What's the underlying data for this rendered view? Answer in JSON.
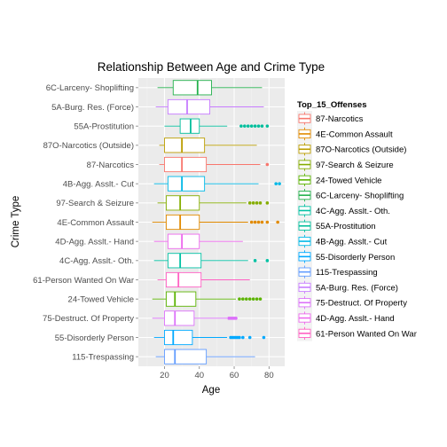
{
  "chart_data": {
    "type": "boxplot",
    "title": "Relationship Between Age and Crime Type",
    "xlabel": "Age",
    "ylabel": "Crime Type",
    "xlim": [
      5,
      89
    ],
    "x_ticks": [
      20,
      40,
      60,
      80
    ],
    "grid": true,
    "legend_title": "Top_15_Offenses",
    "legend_position": "right",
    "categories": [
      "6C-Larceny- Shoplifting",
      "5A-Burg. Res. (Force)",
      "55A-Prostitution",
      "87O-Narcotics (Outside)",
      "87-Narcotics",
      "4B-Agg. Asslt.- Cut",
      "97-Search & Seizure",
      "4E-Common Assault",
      "4D-Agg. Asslt.- Hand",
      "4C-Agg. Asslt.- Oth.",
      "61-Person Wanted On War",
      "24-Towed Vehicle",
      "75-Destruct. Of Property",
      "55-Disorderly Person",
      "115-Trespassing"
    ],
    "boxes": [
      {
        "name": "6C-Larceny- Shoplifting",
        "color": "#23B14C",
        "whisker_low": 16,
        "q1": 25,
        "median": 39,
        "q3": 47,
        "whisker_high": 76,
        "outliers": []
      },
      {
        "name": "5A-Burg. Res. (Force)",
        "color": "#C77CFF",
        "whisker_low": 15,
        "q1": 22,
        "median": 33,
        "q3": 46,
        "whisker_high": 77,
        "outliers": []
      },
      {
        "name": "55A-Prostitution",
        "color": "#00BE9C",
        "whisker_low": 20,
        "q1": 29,
        "median": 35,
        "q3": 40,
        "whisker_high": 56,
        "outliers": [
          64,
          66,
          68,
          70,
          72,
          74,
          76,
          79
        ]
      },
      {
        "name": "87O-Narcotics (Outside)",
        "color": "#BB9D00",
        "whisker_low": 17,
        "q1": 20,
        "median": 30,
        "q3": 43,
        "whisker_high": 73,
        "outliers": []
      },
      {
        "name": "87-Narcotics",
        "color": "#F8766D",
        "whisker_low": 17,
        "q1": 20,
        "median": 30,
        "q3": 44,
        "whisker_high": 75,
        "outliers": [
          79
        ]
      },
      {
        "name": "4B-Agg. Asslt.- Cut",
        "color": "#00B8E7",
        "whisker_low": 14,
        "q1": 22,
        "median": 30,
        "q3": 43,
        "whisker_high": 74,
        "outliers": [
          84,
          86
        ]
      },
      {
        "name": "97-Search & Seizure",
        "color": "#85AD00",
        "whisker_low": 16,
        "q1": 21,
        "median": 29,
        "q3": 40,
        "whisker_high": 67,
        "outliers": [
          69,
          71,
          73,
          75,
          79
        ]
      },
      {
        "name": "4E-Common Assault",
        "color": "#E18A00",
        "whisker_low": 13,
        "q1": 21,
        "median": 29,
        "q3": 40,
        "whisker_high": 68,
        "outliers": [
          70,
          72,
          74,
          76,
          79,
          85
        ]
      },
      {
        "name": "4D-Agg. Asslt.- Hand",
        "color": "#ED68ED",
        "whisker_low": 14,
        "q1": 22,
        "median": 30,
        "q3": 40,
        "whisker_high": 65,
        "outliers": []
      },
      {
        "name": "4C-Agg. Asslt.- Oth.",
        "color": "#00C1A3",
        "whisker_low": 14,
        "q1": 22,
        "median": 29,
        "q3": 41,
        "whisker_high": 68,
        "outliers": [
          72,
          79
        ]
      },
      {
        "name": "61-Person Wanted On War",
        "color": "#FF61C3",
        "whisker_low": 16,
        "q1": 21,
        "median": 28,
        "q3": 41,
        "whisker_high": 69,
        "outliers": []
      },
      {
        "name": "24-Towed Vehicle",
        "color": "#5BB300",
        "whisker_low": 13,
        "q1": 21,
        "median": 26,
        "q3": 38,
        "whisker_high": 61,
        "outliers": [
          63,
          65,
          67,
          69,
          71,
          73,
          75
        ]
      },
      {
        "name": "75-Destruct. Of Property",
        "color": "#DC71FA",
        "whisker_low": 13,
        "q1": 20,
        "median": 26,
        "q3": 37,
        "whisker_high": 56,
        "outliers": [
          57,
          58,
          59,
          60,
          61
        ]
      },
      {
        "name": "55-Disorderly Person",
        "color": "#00A9FF",
        "whisker_low": 14,
        "q1": 20,
        "median": 25,
        "q3": 36,
        "whisker_high": 56,
        "outliers": [
          58,
          59,
          60,
          61,
          62,
          63,
          65,
          69,
          77
        ]
      },
      {
        "name": "115-Trespassing",
        "color": "#619CFF",
        "whisker_low": 15,
        "q1": 20,
        "median": 26,
        "q3": 44,
        "whisker_high": 72,
        "outliers": []
      }
    ],
    "legend": [
      {
        "label": "87-Narcotics",
        "color": "#F8766D"
      },
      {
        "label": "4E-Common Assault",
        "color": "#E18A00"
      },
      {
        "label": "87O-Narcotics (Outside)",
        "color": "#BB9D00"
      },
      {
        "label": "97-Search & Seizure",
        "color": "#85AD00"
      },
      {
        "label": "24-Towed Vehicle",
        "color": "#5BB300"
      },
      {
        "label": "6C-Larceny- Shoplifting",
        "color": "#23B14C"
      },
      {
        "label": "4C-Agg. Asslt.- Oth.",
        "color": "#00C1A3"
      },
      {
        "label": "55A-Prostitution",
        "color": "#00BE9C"
      },
      {
        "label": "4B-Agg. Asslt.- Cut",
        "color": "#00B8E7"
      },
      {
        "label": "55-Disorderly Person",
        "color": "#00A9FF"
      },
      {
        "label": "115-Trespassing",
        "color": "#619CFF"
      },
      {
        "label": "5A-Burg. Res. (Force)",
        "color": "#C77CFF"
      },
      {
        "label": "75-Destruct. Of Property",
        "color": "#DC71FA"
      },
      {
        "label": "4D-Agg. Asslt.- Hand",
        "color": "#ED68ED"
      },
      {
        "label": "61-Person Wanted On War",
        "color": "#FF61C3"
      }
    ]
  }
}
